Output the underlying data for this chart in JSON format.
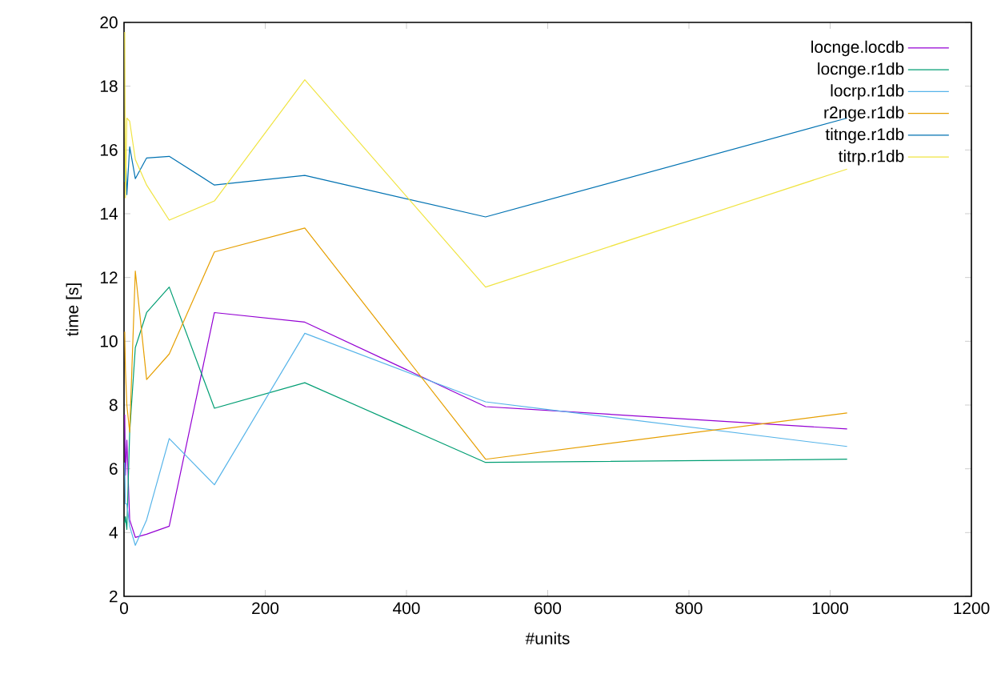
{
  "chart_data": {
    "type": "line",
    "xlabel": "#units",
    "ylabel": "time [s]",
    "x": [
      1,
      2,
      4,
      8,
      16,
      32,
      64,
      128,
      256,
      512,
      1024
    ],
    "xlim": [
      0,
      1200
    ],
    "xticks": [
      0,
      200,
      400,
      600,
      800,
      1000,
      1200
    ],
    "ylim": [
      2,
      20
    ],
    "yticks": [
      2,
      4,
      6,
      8,
      10,
      12,
      14,
      16,
      18,
      20
    ],
    "grid": false,
    "legend": "top right",
    "marker": "none",
    "line_style": "solid",
    "series": [
      {
        "name": "locnge.locdb",
        "color": "#9400d3",
        "values": [
          7.7,
          5.8,
          6.9,
          4.4,
          3.85,
          3.95,
          4.2,
          10.9,
          10.6,
          7.95,
          7.25
        ]
      },
      {
        "name": "locnge.r1db",
        "color": "#009e73",
        "values": [
          4.3,
          4.5,
          4.1,
          7.15,
          9.8,
          10.9,
          11.7,
          7.9,
          8.7,
          6.2,
          6.3
        ]
      },
      {
        "name": "locrp.r1db",
        "color": "#56b4e9",
        "values": [
          6.2,
          4.9,
          4.9,
          4.2,
          3.6,
          4.4,
          6.95,
          5.5,
          10.25,
          8.1,
          6.7
        ]
      },
      {
        "name": "r2nge.r1db",
        "color": "#e69f00",
        "values": [
          10.3,
          9.1,
          8.0,
          7.15,
          12.2,
          8.8,
          9.6,
          12.8,
          13.55,
          6.3,
          7.75
        ]
      },
      {
        "name": "titnge.r1db",
        "color": "#0072b2",
        "values": [
          15.0,
          16.0,
          14.6,
          16.1,
          15.1,
          15.75,
          15.8,
          14.9,
          15.2,
          13.9,
          17.0
        ]
      },
      {
        "name": "titrp.r1db",
        "color": "#f0e442",
        "values": [
          19.7,
          14.5,
          17.0,
          16.9,
          15.7,
          14.9,
          13.8,
          14.4,
          18.2,
          11.7,
          15.4
        ]
      }
    ]
  }
}
